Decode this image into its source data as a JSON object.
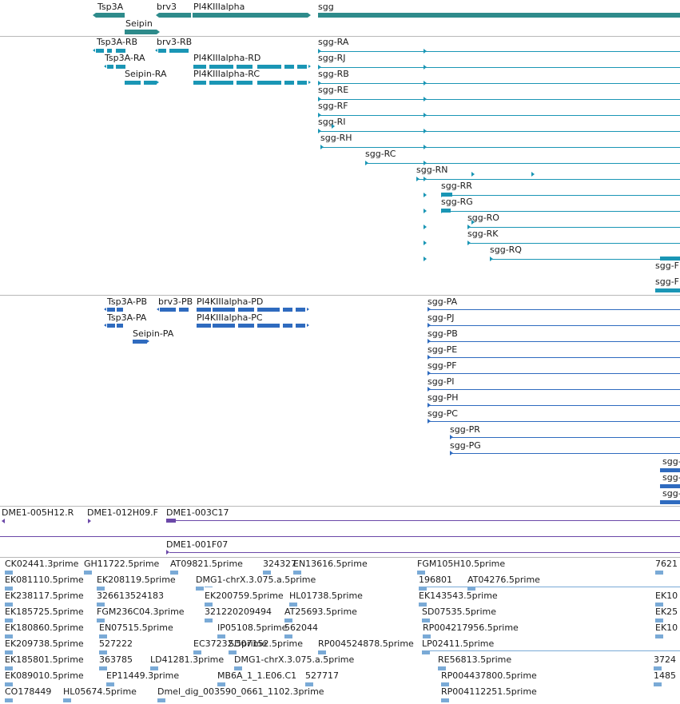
{
  "colors": {
    "gene": "#2e8b8b",
    "transcript": "#1a96b5",
    "protein": "#2f6bbf",
    "clone": "#6b48a8",
    "est": "#7aaad6",
    "separator": "#b8b8b8"
  },
  "tracks": {
    "genes": {
      "labels": [
        "Tsp3A",
        "Seipin",
        "brv3",
        "PI4KIIIalpha",
        "sgg"
      ]
    },
    "transcripts": {
      "labels": [
        "Tsp3A-RB",
        "brv3-RB",
        "Tsp3A-RA",
        "PI4KIIIalpha-RD",
        "Seipin-RA",
        "PI4KIIIalpha-RC",
        "sgg-RA",
        "sgg-RJ",
        "sgg-RB",
        "sgg-RE",
        "sgg-RF",
        "sgg-RI",
        "sgg-RH",
        "sgg-RC",
        "sgg-RN",
        "sgg-RR",
        "sgg-RG",
        "sgg-RO",
        "sgg-RK",
        "sgg-RQ",
        "sgg-F",
        "sgg-F"
      ]
    },
    "proteins": {
      "labels": [
        "Tsp3A-PB",
        "brv3-PB",
        "PI4KIIIalpha-PD",
        "Tsp3A-PA",
        "PI4KIIIalpha-PC",
        "Seipin-PA",
        "sgg-PA",
        "sgg-PJ",
        "sgg-PB",
        "sgg-PE",
        "sgg-PF",
        "sgg-PI",
        "sgg-PH",
        "sgg-PC",
        "sgg-PR",
        "sgg-PG",
        "sgg-",
        "sgg-",
        "sgg-"
      ]
    },
    "clones": {
      "labels": [
        "DME1-005H12.R",
        "DME1-012H09.F",
        "DME1-003C17",
        "DME1-001F07"
      ]
    },
    "ests": {
      "labels": [
        "CK02441.3prime",
        "GH11722.5prime",
        "AT09821.5prime",
        "324327",
        "EN13616.5prime",
        "FGM105H10.5prime",
        "7621",
        "EK081110.5prime",
        "EK208119.5prime",
        "DMG1-chrX.3.075.a.5prime",
        "196801",
        "AT04276.5prime",
        "EK238117.5prime",
        "326613524183",
        "EK200759.5prime",
        "HL01738.5prime",
        "EK143543.5prime",
        "EK10",
        "EK185725.5prime",
        "FGM236C04.3prime",
        "321220209494",
        "AT25693.5prime",
        "SD07535.5prime",
        "EK25",
        "EK180860.5prime",
        "EN07515.5prime",
        "IP05108.5prime",
        "562044",
        "RP004217956.5prime",
        "EK10",
        "EK209738.5prime",
        "527222",
        "EC37232.5prime",
        "SD07152.5prime",
        "RP004524878.5prime",
        "LP02411.5prime",
        "EK185801.5prime",
        "363785",
        "LD41281.3prime",
        "DMG1-chrX.3.075.a.5prime",
        "RE56813.5prime",
        "3724",
        "EK089010.5prime",
        "EP11449.3prime",
        "MB6A_1_1.E06.C1",
        "527717",
        "RP004437800.5prime",
        "1485",
        "CO178449",
        "HL05674.5prime",
        "Dmel_dig_003590_0661_1102.3prime",
        "RP004112251.5prime"
      ]
    }
  }
}
